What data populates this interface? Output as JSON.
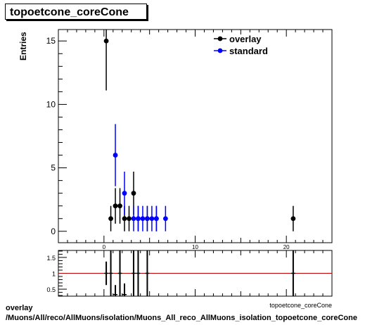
{
  "chart_data": [
    {
      "type": "scatter",
      "title": "topoetcone_coreCone",
      "xlabel": "topoetcone_coreCone",
      "ylabel": "Entries",
      "xlim": [
        -5,
        25
      ],
      "ylim": [
        -0.9,
        15.9
      ],
      "xticks": [
        0,
        10,
        20
      ],
      "yticks": [
        0,
        5,
        10,
        15
      ],
      "legend_position": "top-right",
      "series": [
        {
          "name": "overlay",
          "color": "#000000",
          "points": [
            {
              "x": 0.25,
              "y": 15,
              "err": 3.9
            },
            {
              "x": 0.75,
              "y": 1,
              "err": 1
            },
            {
              "x": 1.25,
              "y": 2,
              "err": 1.4
            },
            {
              "x": 1.75,
              "y": 2,
              "err": 1.4
            },
            {
              "x": 2.25,
              "y": 1,
              "err": 1
            },
            {
              "x": 2.75,
              "y": 1,
              "err": 1
            },
            {
              "x": 3.25,
              "y": 3,
              "err": 1.7
            },
            {
              "x": 3.75,
              "y": 1,
              "err": 1
            },
            {
              "x": 4.75,
              "y": 1,
              "err": 1
            },
            {
              "x": 5.75,
              "y": 1,
              "err": 1
            },
            {
              "x": 20.75,
              "y": 1,
              "err": 1
            }
          ]
        },
        {
          "name": "standard",
          "color": "#0000ff",
          "points": [
            {
              "x": 1.25,
              "y": 6,
              "err": 2.45
            },
            {
              "x": 2.25,
              "y": 3,
              "err": 1.7
            },
            {
              "x": 3.25,
              "y": 1,
              "err": 1
            },
            {
              "x": 3.75,
              "y": 1,
              "err": 1
            },
            {
              "x": 4.25,
              "y": 1,
              "err": 1
            },
            {
              "x": 4.75,
              "y": 1,
              "err": 1
            },
            {
              "x": 5.25,
              "y": 1,
              "err": 1
            },
            {
              "x": 5.75,
              "y": 1,
              "err": 1
            },
            {
              "x": 6.75,
              "y": 1,
              "err": 1
            }
          ]
        }
      ]
    },
    {
      "type": "scatter",
      "title": "",
      "xlim": [
        -5,
        25
      ],
      "ylim": [
        0.28,
        1.72
      ],
      "xticks": [
        0,
        10,
        20
      ],
      "yticks": [
        0.5,
        1,
        1.5
      ],
      "reference_line": {
        "y": 1,
        "color": "#c00000"
      },
      "series": [
        {
          "name": "",
          "color": "#000000",
          "points": [
            {
              "x": 0.25,
              "y": 1.0,
              "err": 0.37
            },
            {
              "x": 0.75,
              "y": 1.0,
              "err": 1.4
            },
            {
              "x": 1.25,
              "y": 0.33,
              "err": 0.3
            },
            {
              "x": 1.75,
              "y": 1.0,
              "err": 0.8
            },
            {
              "x": 2.25,
              "y": 0.33,
              "err": 0.35
            },
            {
              "x": 3.25,
              "y": 1.0,
              "err": 1.0
            },
            {
              "x": 3.75,
              "y": 1.0,
              "err": 1.4
            },
            {
              "x": 4.75,
              "y": 1.0,
              "err": 1.4
            },
            {
              "x": 20.75,
              "y": 1.0,
              "err": 1.4
            }
          ]
        }
      ]
    }
  ],
  "footer": {
    "line1": "overlay",
    "line2": "/Muons/All/reco/AllMuons/isolation/Muons_All_reco_AllMuons_isolation_topoetcone_coreCone"
  }
}
